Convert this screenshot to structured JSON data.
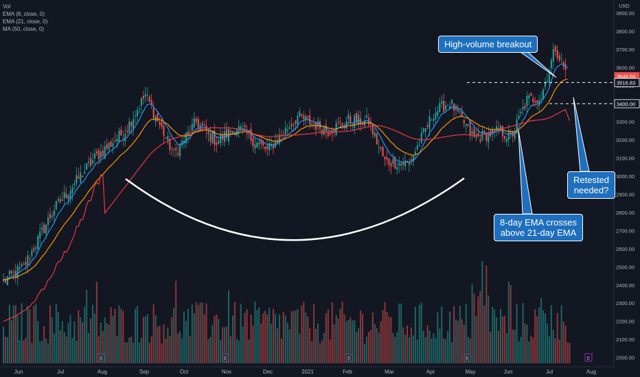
{
  "legend": {
    "vol": "Vol",
    "ema8": "EMA (8, close, 0)",
    "ema21": "EMA (21, close, 0)",
    "ma50": "MA (50, close, 0)",
    "currency": "USD"
  },
  "colors": {
    "background": "#131722",
    "up": "#26a69a",
    "down": "#ef5350",
    "ema8": "#2196f3",
    "ema21": "#ff9800",
    "ma50": "#f23645",
    "annotation": "#1e6fbd",
    "arc": "#ffffff"
  },
  "annotations": {
    "breakout": "High-volume breakout",
    "crossover_line1": "8-day EMA crosses",
    "crossover_line2": "above 21-day EMA",
    "retest_line1": "Retested",
    "retest_line2": "needed?"
  },
  "price_labels": {
    "last": "3549.59",
    "level_high": "3516.83",
    "level_low": "3400.00"
  },
  "earnings_marker": "E",
  "chart_data": {
    "type": "candlestick",
    "y_axis_ticks": [
      "3900.00",
      "3800.00",
      "3700.00",
      "3600.00",
      "3500.00",
      "3400.00",
      "3300.00",
      "3200.00",
      "3100.00",
      "3000.00",
      "2900.00",
      "2800.00",
      "2700.00",
      "2600.00",
      "2500.00",
      "2400.00",
      "2300.00",
      "2200.00",
      "2100.00",
      "2000.00"
    ],
    "x_axis_ticks": [
      "Jun",
      "Jul",
      "Aug",
      "Sep",
      "Oct",
      "Nov",
      "Dec",
      "2021",
      "Feb",
      "Mar",
      "Apr",
      "May",
      "Jun",
      "Jul",
      "Aug"
    ],
    "ylim": [
      2000,
      3950
    ],
    "series": [
      {
        "name": "EMA (8, close, 0)"
      },
      {
        "name": "EMA (21, close, 0)"
      },
      {
        "name": "MA (50, close, 0)"
      }
    ],
    "anchors": [
      {
        "i": 0,
        "c": 2420
      },
      {
        "i": 10,
        "c": 2500
      },
      {
        "i": 25,
        "c": 2820
      },
      {
        "i": 45,
        "c": 3100
      },
      {
        "i": 60,
        "c": 3250
      },
      {
        "i": 70,
        "c": 3450
      },
      {
        "i": 75,
        "c": 3330
      },
      {
        "i": 84,
        "c": 3120
      },
      {
        "i": 95,
        "c": 3300
      },
      {
        "i": 105,
        "c": 3190
      },
      {
        "i": 115,
        "c": 3270
      },
      {
        "i": 130,
        "c": 3140
      },
      {
        "i": 145,
        "c": 3330
      },
      {
        "i": 160,
        "c": 3250
      },
      {
        "i": 170,
        "c": 3310
      },
      {
        "i": 180,
        "c": 3300
      },
      {
        "i": 188,
        "c": 3080
      },
      {
        "i": 200,
        "c": 3070
      },
      {
        "i": 212,
        "c": 3350
      },
      {
        "i": 220,
        "c": 3410
      },
      {
        "i": 232,
        "c": 3210
      },
      {
        "i": 245,
        "c": 3250
      },
      {
        "i": 250,
        "c": 3210
      },
      {
        "i": 258,
        "c": 3420
      },
      {
        "i": 265,
        "c": 3440
      },
      {
        "i": 272,
        "c": 3710
      },
      {
        "i": 278,
        "c": 3550
      }
    ],
    "horizontal_levels": [
      3516.83,
      3400.0
    ],
    "volume_note": "volume bars shown at bottom"
  }
}
